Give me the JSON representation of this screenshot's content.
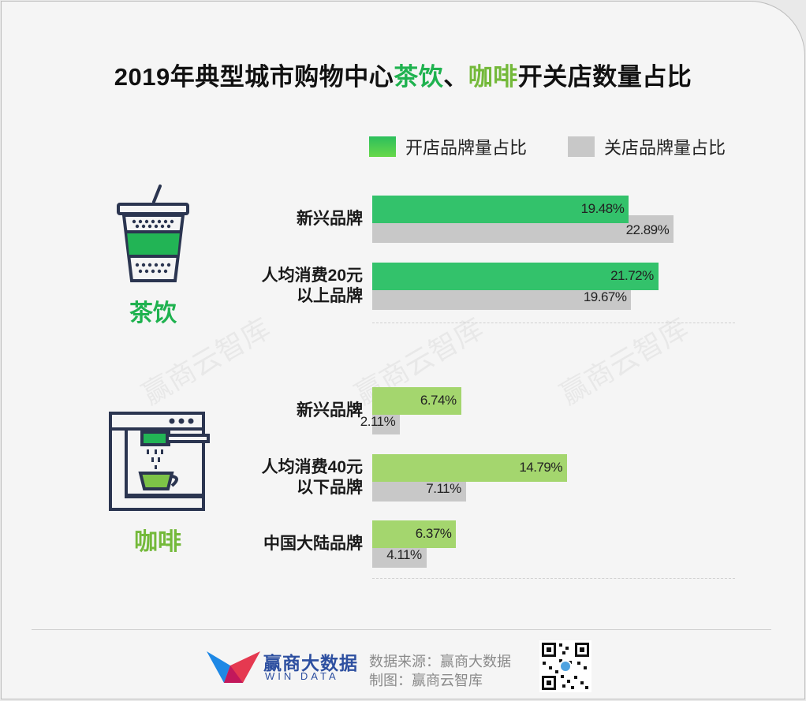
{
  "title": {
    "prefix": "2019年典型城市购物中心",
    "highlight1": "茶饮",
    "sep": "、",
    "highlight2": "咖啡",
    "suffix": "开关店数量占比"
  },
  "legend": [
    {
      "name": "开店品牌量占比",
      "color": "#2cbf5c"
    },
    {
      "name": "关店品牌量占比",
      "color": "#c8c8c8"
    }
  ],
  "colors": {
    "tea": "#33c26b",
    "coffee": "#a4d66e",
    "close": "#c8c8c8"
  },
  "categories": [
    {
      "name": "茶饮",
      "color": "#1fb24f",
      "icon": "bubble-tea-cup-icon"
    },
    {
      "name": "咖啡",
      "color": "#74b93a",
      "icon": "coffee-machine-icon"
    }
  ],
  "chart_data": {
    "type": "bar",
    "orientation": "horizontal",
    "title": "2019年典型城市购物中心茶饮、咖啡开关店数量占比",
    "groups": [
      {
        "category": "茶饮",
        "rows": [
          {
            "label": "新兴品牌",
            "open": 19.48,
            "close": 22.89,
            "open_label": "19.48%",
            "close_label": "22.89%"
          },
          {
            "label": "人均消费20元\n以上品牌",
            "open": 21.72,
            "close": 19.67,
            "open_label": "21.72%",
            "close_label": "19.67%"
          }
        ]
      },
      {
        "category": "咖啡",
        "rows": [
          {
            "label": "新兴品牌",
            "open": 6.74,
            "close": 2.11,
            "open_label": "6.74%",
            "close_label": "2.11%"
          },
          {
            "label": "人均消费40元\n以下品牌",
            "open": 14.79,
            "close": 7.11,
            "open_label": "14.79%",
            "close_label": "7.11%"
          },
          {
            "label": "中国大陆品牌",
            "open": 6.37,
            "close": 4.11,
            "open_label": "6.37%",
            "close_label": "4.11%"
          }
        ]
      }
    ],
    "series": [
      {
        "name": "开店品牌量占比"
      },
      {
        "name": "关店品牌量占比"
      }
    ],
    "legend_position": "top-right"
  },
  "watermark": "赢商云智库",
  "footer": {
    "brand_cn": "赢商大数据",
    "brand_en": "WIN DATA",
    "source": "数据来源：赢商大数据",
    "made_by": "制图：赢商云智库",
    "qr_icon": "qr-code-icon"
  }
}
